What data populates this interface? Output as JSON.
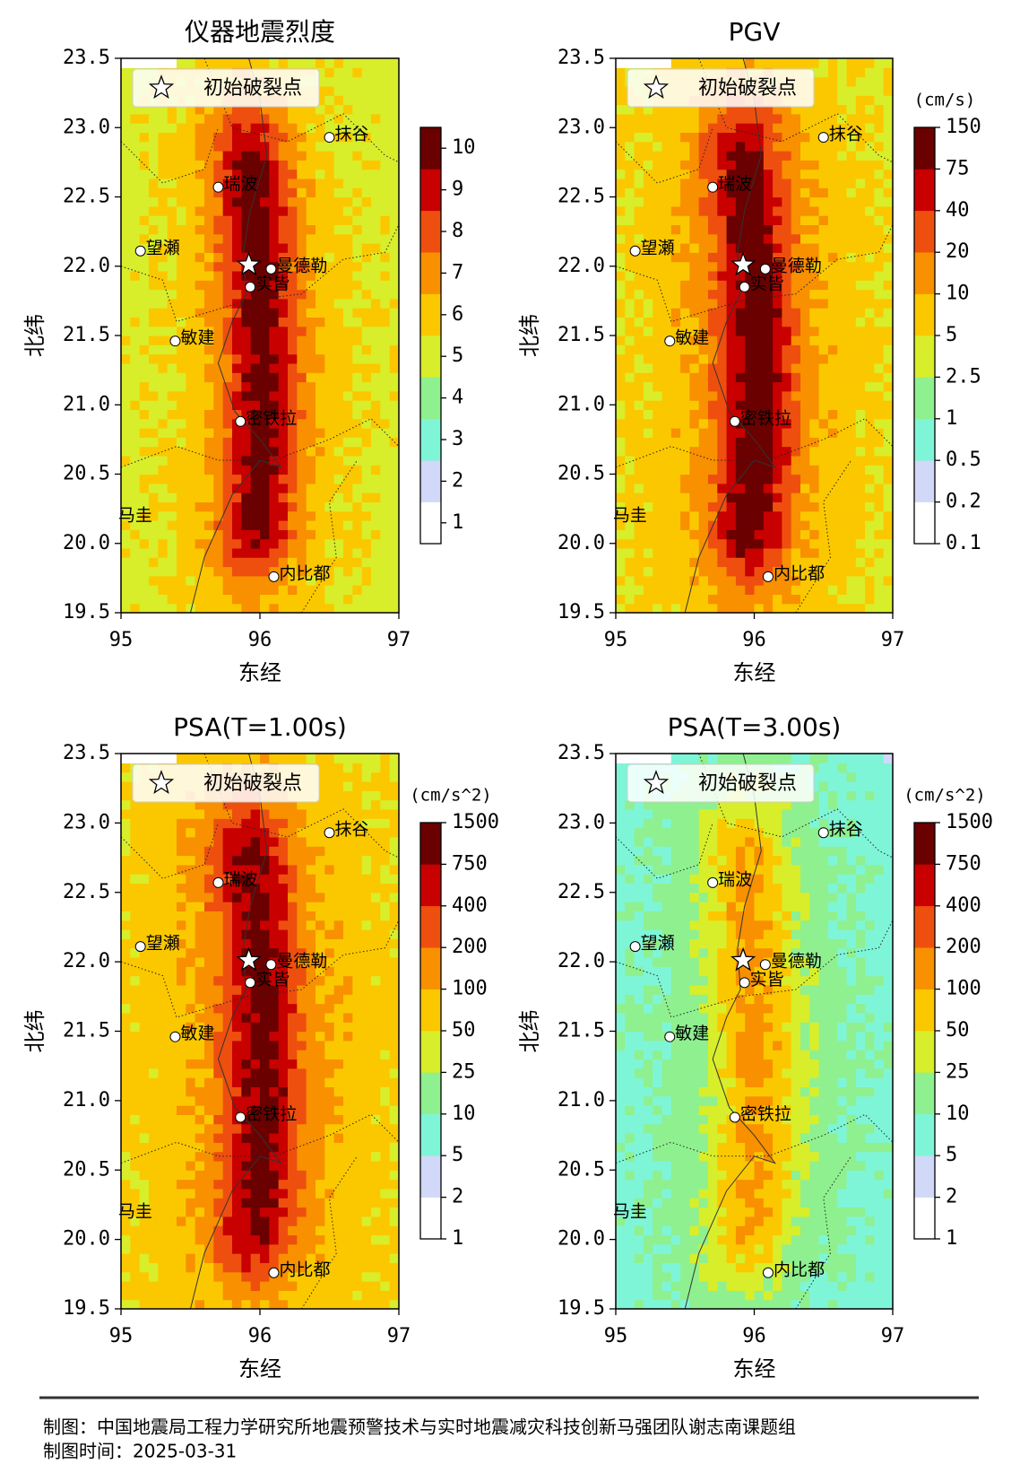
{
  "panels": [
    {
      "title": "仪器地震烈度",
      "colorbar": {
        "ticks": [
          1,
          2,
          3,
          4,
          5,
          6,
          7,
          8,
          9,
          10
        ],
        "tick_position": "center"
      }
    },
    {
      "title": "PGV",
      "colorbar": {
        "unit": "(cm/s)",
        "ticks": [
          0.1,
          0.2,
          0.5,
          1,
          2.5,
          5,
          10,
          20,
          40,
          75,
          150
        ],
        "tick_position": "edge"
      }
    },
    {
      "title": "PSA(T=1.00s)",
      "colorbar": {
        "unit": "(cm/s^2)",
        "ticks": [
          1,
          2,
          5,
          10,
          25,
          50,
          100,
          200,
          400,
          750,
          1500
        ],
        "tick_position": "edge"
      }
    },
    {
      "title": "PSA(T=3.00s)",
      "colorbar": {
        "unit": "(cm/s^2)",
        "ticks": [
          1,
          2,
          5,
          10,
          25,
          50,
          100,
          200,
          400,
          750,
          1500
        ],
        "tick_position": "edge"
      }
    }
  ],
  "xlabel": "东经",
  "ylabel": "北纬",
  "xlim": [
    95,
    97
  ],
  "ylim": [
    19.5,
    23.5
  ],
  "xticks": [
    95,
    96,
    97
  ],
  "yticks": [
    {
      "value": 19.5,
      "label": "19.5"
    },
    {
      "value": 20,
      "label": "20.0"
    },
    {
      "value": 20.5,
      "label": "20.5"
    },
    {
      "value": 21,
      "label": "21.0"
    },
    {
      "value": 21.5,
      "label": "21.5"
    },
    {
      "value": 22,
      "label": "22.0"
    },
    {
      "value": 22.5,
      "label": "22.5"
    },
    {
      "value": 23,
      "label": "23.0"
    },
    {
      "value": 23.5,
      "label": "23.5"
    }
  ],
  "legend": "初始破裂点",
  "cities": [
    "抹谷",
    "瑞波",
    "望瀬",
    "曼德勒",
    "实皆",
    "敏建",
    "密铁拉",
    "内比都",
    "马圭"
  ],
  "colors": [
    "#ffffff",
    "#d2d8f8",
    "#7ff5d8",
    "#8ff08f",
    "#d8ee2a",
    "#fbc800",
    "#f89000",
    "#ee4f0e",
    "#c80000",
    "#6a0000"
  ],
  "footer": {
    "credit": "制图：中国地震局工程力学研究所地震预警技术与实时地震减灾科技创新马强团队谢志南课题组",
    "date": "制图时间：2025-03-31"
  }
}
